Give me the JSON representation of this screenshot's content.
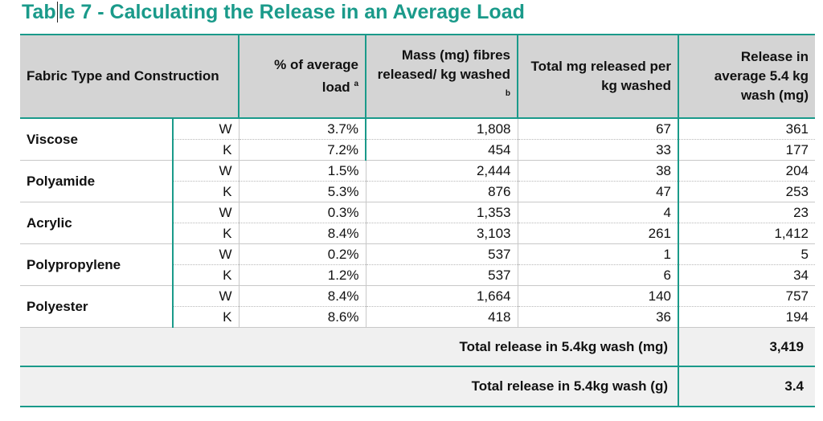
{
  "title_part1": "Tab",
  "title_part2": "le 7 - Calculating the Release in an Average Load",
  "header": {
    "fabric": "Fabric Type and Construction",
    "pct": "% of average load",
    "pct_sup": "a",
    "mass": "Mass (mg) fibres released/ kg washed",
    "mass_sup": "b",
    "total": "Total mg released per kg washed",
    "release": "Release in average 5.4 kg wash (mg)"
  },
  "rows": [
    {
      "fabric": "Viscose",
      "w": {
        "cons": "W",
        "pct": "3.7%",
        "mass": "1,808",
        "total": "67",
        "release": "361"
      },
      "k": {
        "cons": "K",
        "pct": "7.2%",
        "mass": "454",
        "total": "33",
        "release": "177"
      }
    },
    {
      "fabric": "Polyamide",
      "w": {
        "cons": "W",
        "pct": "1.5%",
        "mass": "2,444",
        "total": "38",
        "release": "204"
      },
      "k": {
        "cons": "K",
        "pct": "5.3%",
        "mass": "876",
        "total": "47",
        "release": "253"
      }
    },
    {
      "fabric": "Acrylic",
      "w": {
        "cons": "W",
        "pct": "0.3%",
        "mass": "1,353",
        "total": "4",
        "release": "23"
      },
      "k": {
        "cons": "K",
        "pct": "8.4%",
        "mass": "3,103",
        "total": "261",
        "release": "1,412"
      }
    },
    {
      "fabric": "Polypropylene",
      "w": {
        "cons": "W",
        "pct": "0.2%",
        "mass": "537",
        "total": "1",
        "release": "5"
      },
      "k": {
        "cons": "K",
        "pct": "1.2%",
        "mass": "537",
        "total": "6",
        "release": "34"
      }
    },
    {
      "fabric": "Polyester",
      "w": {
        "cons": "W",
        "pct": "8.4%",
        "mass": "1,664",
        "total": "140",
        "release": "757"
      },
      "k": {
        "cons": "K",
        "pct": "8.6%",
        "mass": "418",
        "total": "36",
        "release": "194"
      }
    }
  ],
  "totals": {
    "mg_label": "Total release in 5.4kg wash (mg)",
    "mg_value": "3,419",
    "g_label": "Total release in 5.4kg wash (g)",
    "g_value": "3.4"
  },
  "colors": {
    "accent": "#1a9a8a",
    "header_bg": "#d4d4d4",
    "total_bg": "#f0f0f0"
  }
}
